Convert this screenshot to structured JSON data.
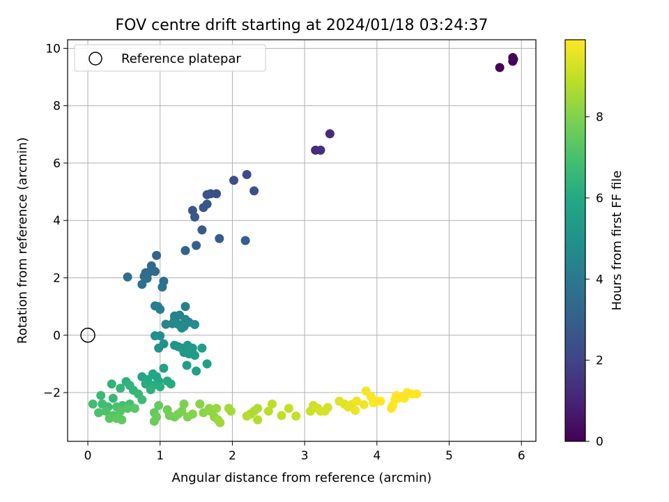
{
  "chart_data": {
    "type": "scatter",
    "title": "FOV centre drift starting at 2024/01/18 03:24:37",
    "xlabel": "Angular distance from reference (arcmin)",
    "ylabel": "Rotation from reference (arcmin)",
    "xlim": [
      -0.28,
      6.2
    ],
    "ylim": [
      -3.7,
      10.3
    ],
    "xticks": [
      0,
      1,
      2,
      3,
      4,
      5,
      6
    ],
    "yticks": [
      -2,
      0,
      2,
      4,
      6,
      8,
      10
    ],
    "grid": true,
    "legend": {
      "placement": "top-left",
      "entries": [
        "Reference platepar"
      ]
    },
    "reference": {
      "x": 0,
      "y": 0
    },
    "colorbar": {
      "label": "Hours from first FF file",
      "colormap": "viridis",
      "range": [
        0,
        9.9
      ],
      "ticks": [
        0,
        2,
        4,
        6,
        8
      ]
    },
    "points": [
      [
        5.7,
        9.33,
        0.0
      ],
      [
        5.88,
        9.55,
        0.05
      ],
      [
        5.89,
        9.62,
        0.1
      ],
      [
        5.88,
        9.68,
        0.15
      ],
      [
        3.35,
        7.02,
        1.2
      ],
      [
        3.15,
        6.45,
        1.3
      ],
      [
        3.22,
        6.45,
        1.35
      ],
      [
        2.2,
        5.6,
        2.2
      ],
      [
        2.02,
        5.4,
        2.3
      ],
      [
        2.3,
        5.03,
        2.35
      ],
      [
        1.78,
        4.93,
        2.4
      ],
      [
        1.7,
        4.93,
        2.45
      ],
      [
        1.65,
        4.9,
        2.5
      ],
      [
        1.65,
        4.57,
        2.55
      ],
      [
        1.6,
        4.45,
        2.6
      ],
      [
        1.45,
        4.35,
        2.65
      ],
      [
        1.48,
        4.12,
        2.7
      ],
      [
        1.58,
        3.67,
        2.8
      ],
      [
        1.82,
        3.37,
        2.85
      ],
      [
        2.18,
        3.3,
        2.9
      ],
      [
        1.5,
        3.13,
        3.0
      ],
      [
        1.35,
        2.95,
        3.05
      ],
      [
        0.95,
        2.78,
        3.2
      ],
      [
        0.88,
        2.42,
        3.3
      ],
      [
        0.93,
        2.22,
        3.35
      ],
      [
        0.85,
        2.2,
        3.4
      ],
      [
        0.8,
        2.18,
        3.45
      ],
      [
        0.78,
        2.05,
        3.5
      ],
      [
        0.55,
        2.03,
        3.55
      ],
      [
        0.82,
        1.98,
        3.6
      ],
      [
        1.05,
        1.88,
        3.65
      ],
      [
        0.75,
        1.77,
        3.7
      ],
      [
        1.03,
        1.68,
        3.75
      ],
      [
        0.93,
        1.02,
        4.1
      ],
      [
        0.97,
        1.0,
        4.15
      ],
      [
        1.0,
        0.9,
        4.2
      ],
      [
        1.35,
        1.0,
        4.25
      ],
      [
        1.2,
        0.67,
        4.3
      ],
      [
        1.27,
        0.7,
        4.35
      ],
      [
        1.2,
        0.55,
        4.4
      ],
      [
        1.35,
        0.55,
        4.45
      ],
      [
        1.4,
        0.45,
        4.5
      ],
      [
        1.08,
        0.38,
        4.55
      ],
      [
        1.17,
        0.4,
        4.6
      ],
      [
        1.25,
        0.38,
        4.65
      ],
      [
        1.33,
        0.3,
        4.7
      ],
      [
        1.3,
        0.25,
        4.75
      ],
      [
        1.48,
        0.37,
        4.8
      ],
      [
        0.93,
        -0.02,
        4.85
      ],
      [
        1.0,
        -0.02,
        4.9
      ],
      [
        1.05,
        -0.3,
        4.95
      ],
      [
        0.98,
        -0.45,
        5.0
      ],
      [
        1.2,
        -0.35,
        5.05
      ],
      [
        1.25,
        -0.4,
        5.1
      ],
      [
        1.3,
        -0.45,
        5.15
      ],
      [
        1.38,
        -0.35,
        5.2
      ],
      [
        1.45,
        -0.45,
        5.25
      ],
      [
        1.33,
        -0.6,
        5.3
      ],
      [
        1.4,
        -0.65,
        5.35
      ],
      [
        1.48,
        -0.7,
        5.4
      ],
      [
        1.58,
        -0.45,
        5.45
      ],
      [
        1.37,
        -1.05,
        5.5
      ],
      [
        1.5,
        -1.25,
        5.55
      ],
      [
        1.65,
        -1.0,
        5.6
      ],
      [
        1.05,
        -1.15,
        5.65
      ],
      [
        0.75,
        -1.45,
        5.75
      ],
      [
        0.9,
        -1.35,
        5.8
      ],
      [
        0.95,
        -1.45,
        5.85
      ],
      [
        0.83,
        -1.55,
        5.9
      ],
      [
        0.98,
        -1.6,
        5.95
      ],
      [
        1.1,
        -1.6,
        6.0
      ],
      [
        1.15,
        -1.7,
        6.05
      ],
      [
        0.8,
        -1.7,
        6.1
      ],
      [
        0.9,
        -1.75,
        6.15
      ],
      [
        1.0,
        -1.8,
        6.2
      ],
      [
        0.87,
        -1.9,
        6.25
      ],
      [
        0.53,
        -1.62,
        6.3
      ],
      [
        0.33,
        -1.7,
        6.35
      ],
      [
        0.58,
        -1.75,
        6.4
      ],
      [
        0.63,
        -1.92,
        6.45
      ],
      [
        0.45,
        -1.85,
        6.5
      ],
      [
        0.7,
        -2.05,
        6.55
      ],
      [
        0.35,
        -2.2,
        6.6
      ],
      [
        0.18,
        -2.1,
        6.65
      ],
      [
        0.75,
        -2.25,
        6.7
      ],
      [
        0.2,
        -2.4,
        6.75
      ],
      [
        0.07,
        -2.4,
        6.8
      ],
      [
        0.28,
        -2.5,
        6.85
      ],
      [
        0.48,
        -2.45,
        6.9
      ],
      [
        0.58,
        -2.4,
        6.95
      ],
      [
        0.4,
        -2.5,
        7.0
      ],
      [
        0.15,
        -2.7,
        7.05
      ],
      [
        0.25,
        -2.65,
        7.1
      ],
      [
        0.35,
        -2.8,
        7.15
      ],
      [
        0.45,
        -2.65,
        7.2
      ],
      [
        0.55,
        -2.55,
        7.25
      ],
      [
        0.65,
        -2.55,
        7.3
      ],
      [
        0.3,
        -2.9,
        7.35
      ],
      [
        0.4,
        -2.9,
        7.4
      ],
      [
        0.47,
        -2.95,
        7.45
      ],
      [
        0.92,
        -2.7,
        7.5
      ],
      [
        0.98,
        -2.45,
        7.55
      ],
      [
        0.95,
        -2.85,
        7.6
      ],
      [
        0.92,
        -3.0,
        7.65
      ],
      [
        1.1,
        -2.6,
        7.7
      ],
      [
        1.13,
        -2.8,
        7.75
      ],
      [
        1.2,
        -2.85,
        7.8
      ],
      [
        1.25,
        -2.75,
        7.85
      ],
      [
        1.3,
        -2.65,
        7.9
      ],
      [
        1.33,
        -2.4,
        7.95
      ],
      [
        1.38,
        -2.85,
        8.0
      ],
      [
        1.45,
        -2.75,
        8.05
      ],
      [
        1.55,
        -2.4,
        8.1
      ],
      [
        1.6,
        -2.7,
        8.15
      ],
      [
        1.68,
        -2.55,
        8.2
      ],
      [
        1.7,
        -2.65,
        8.25
      ],
      [
        1.75,
        -2.85,
        8.3
      ],
      [
        1.78,
        -2.55,
        8.35
      ],
      [
        1.8,
        -2.95,
        8.4
      ],
      [
        1.83,
        -3.05,
        8.45
      ],
      [
        1.95,
        -2.55,
        8.5
      ],
      [
        1.98,
        -2.65,
        8.55
      ],
      [
        2.25,
        -2.75,
        8.6
      ],
      [
        2.3,
        -2.65,
        8.65
      ],
      [
        2.35,
        -2.55,
        8.7
      ],
      [
        2.35,
        -2.95,
        8.75
      ],
      [
        2.2,
        -2.82,
        8.8
      ],
      [
        2.5,
        -2.65,
        8.85
      ],
      [
        2.55,
        -2.4,
        8.9
      ],
      [
        2.68,
        -2.8,
        8.95
      ],
      [
        2.78,
        -2.55,
        9.0
      ],
      [
        2.88,
        -2.82,
        9.05
      ],
      [
        3.08,
        -2.65,
        9.1
      ],
      [
        3.12,
        -2.45,
        9.15
      ],
      [
        3.18,
        -2.55,
        9.2
      ],
      [
        3.22,
        -2.65,
        9.25
      ],
      [
        3.32,
        -2.52,
        9.3
      ],
      [
        3.28,
        -2.65,
        9.35
      ],
      [
        3.48,
        -2.3,
        9.4
      ],
      [
        3.55,
        -2.4,
        9.45
      ],
      [
        3.6,
        -2.5,
        9.5
      ],
      [
        3.65,
        -2.42,
        9.55
      ],
      [
        3.7,
        -2.62,
        9.6
      ],
      [
        3.72,
        -2.3,
        9.65
      ],
      [
        3.82,
        -2.42,
        9.7
      ],
      [
        3.85,
        -1.95,
        9.75
      ],
      [
        3.92,
        -2.15,
        9.8
      ],
      [
        3.95,
        -2.35,
        9.85
      ],
      [
        4.0,
        -2.3,
        9.9
      ],
      [
        4.05,
        -2.3,
        9.9
      ],
      [
        4.2,
        -2.55,
        9.9
      ],
      [
        4.22,
        -2.45,
        9.9
      ],
      [
        4.25,
        -2.25,
        9.9
      ],
      [
        4.27,
        -2.1,
        9.9
      ],
      [
        4.3,
        -2.2,
        9.9
      ],
      [
        4.33,
        -2.15,
        9.9
      ],
      [
        4.38,
        -2.2,
        9.9
      ],
      [
        4.42,
        -2.0,
        9.9
      ],
      [
        4.48,
        -2.05,
        9.9
      ],
      [
        4.55,
        -2.05,
        9.9
      ]
    ]
  }
}
